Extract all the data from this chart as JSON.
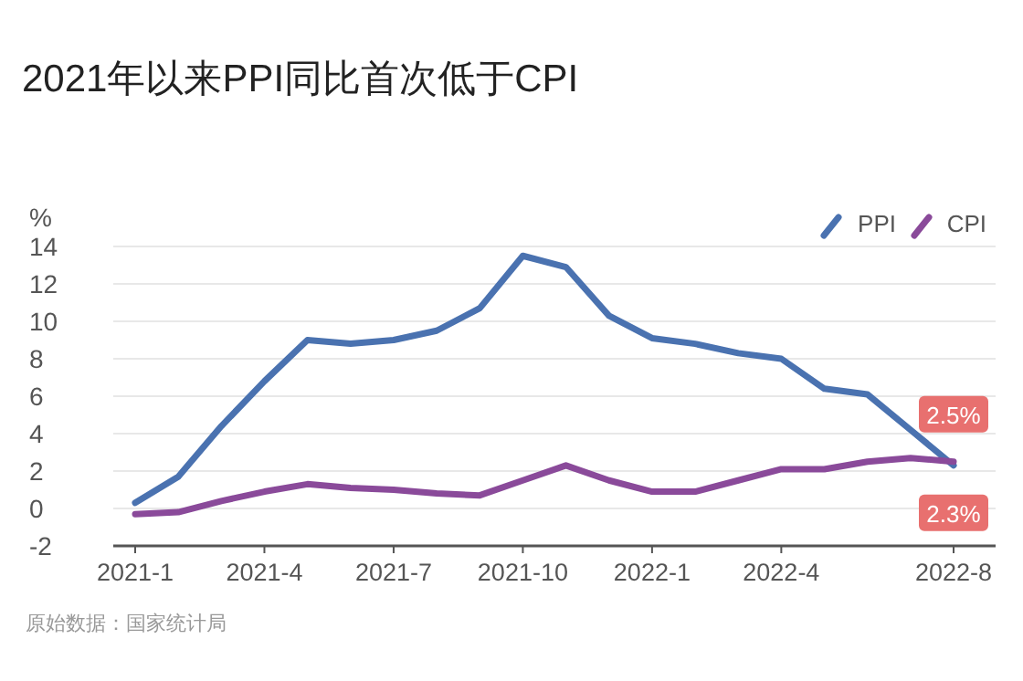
{
  "chart_data": {
    "type": "line",
    "title": "2021年以来PPI同比首次低于CPI",
    "ylabel": "%",
    "categories": [
      "2021-1",
      null,
      null,
      "2021-4",
      null,
      null,
      "2021-7",
      null,
      null,
      "2021-10",
      null,
      null,
      "2022-1",
      null,
      null,
      "2022-4",
      null,
      null,
      null,
      "2022-8"
    ],
    "series": [
      {
        "name": "PPI",
        "color": "#4a72b0",
        "values": [
          0.3,
          1.7,
          4.4,
          6.8,
          9.0,
          8.8,
          9.0,
          9.5,
          10.7,
          13.5,
          12.9,
          10.3,
          9.1,
          8.8,
          8.3,
          8.0,
          6.4,
          6.1,
          4.2,
          2.3
        ],
        "value_labels": [
          null,
          null,
          null,
          null,
          null,
          null,
          null,
          null,
          null,
          null,
          null,
          null,
          null,
          null,
          null,
          null,
          null,
          null,
          null,
          "2.3%"
        ]
      },
      {
        "name": "CPI",
        "color": "#8a4a9a",
        "values": [
          -0.3,
          -0.2,
          0.4,
          0.9,
          1.3,
          1.1,
          1.0,
          0.8,
          0.7,
          1.5,
          2.3,
          1.5,
          0.9,
          0.9,
          1.5,
          2.1,
          2.1,
          2.5,
          2.7,
          2.5
        ],
        "value_labels": [
          null,
          null,
          null,
          null,
          null,
          null,
          null,
          null,
          null,
          null,
          null,
          null,
          null,
          null,
          null,
          null,
          null,
          null,
          null,
          "2.5%"
        ]
      }
    ],
    "ylim": [
      -2,
      14
    ],
    "yticks": [
      -2,
      0,
      2,
      4,
      6,
      8,
      10,
      12,
      14
    ],
    "grid": "y",
    "legend": "top right",
    "marker": "none",
    "line_style": "solid",
    "annotations": [
      "原始数据：国家统计局"
    ]
  }
}
